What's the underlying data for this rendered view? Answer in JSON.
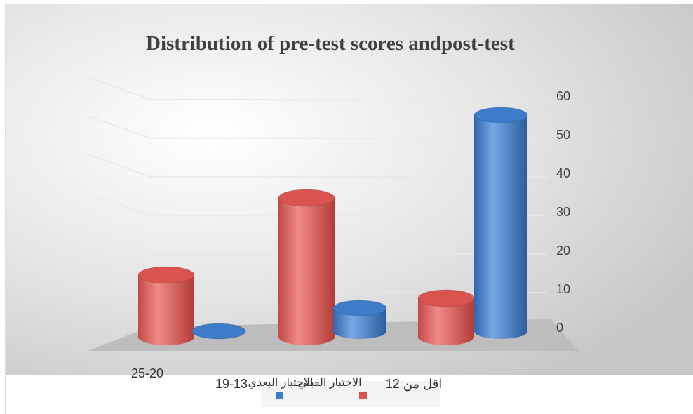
{
  "chart_data": {
    "type": "bar3d",
    "title": "Distribution of pre-test scores andpost-test",
    "categories": [
      "25-20",
      "19-13",
      "اقل من 12"
    ],
    "series": [
      {
        "name": "الاختبار القبلي",
        "color": "#d9534f",
        "values": [
          16,
          36,
          10
        ]
      },
      {
        "name": "الاختبار البعدي",
        "color": "#3d7cc9",
        "values": [
          0,
          6,
          56
        ]
      }
    ],
    "ylim": [
      0,
      60
    ],
    "yticks": [
      0,
      10,
      20,
      30,
      40,
      50,
      60
    ],
    "grid": true
  }
}
